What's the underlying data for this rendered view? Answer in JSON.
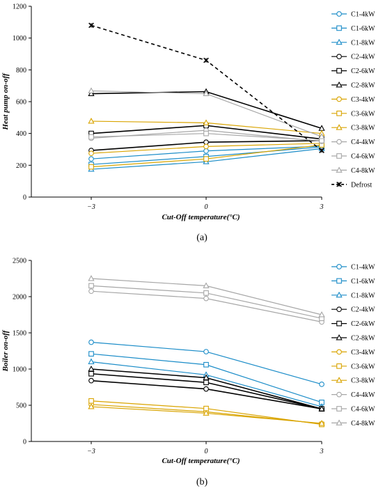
{
  "series_colors": {
    "C1": "#1a8cc8",
    "C2": "#000000",
    "C3": "#d9a400",
    "C4": "#a6a6a6",
    "Defrost": "#000000"
  },
  "chart_data": [
    {
      "id": "a",
      "type": "line",
      "panel_label": "(a)",
      "xlabel": "Cut-Off temperature(°C)",
      "ylabel": "Heat pump on-off",
      "x": [
        -3,
        0,
        3
      ],
      "x_tick_labels": [
        "−3",
        "0",
        "3"
      ],
      "ylim": [
        0,
        1200
      ],
      "y_ticks": [
        0,
        200,
        400,
        600,
        800,
        1000,
        1200
      ],
      "grid": false,
      "legend_position": "right",
      "series": [
        {
          "name": "C1-4kW",
          "group": "C1",
          "marker": "circle",
          "values": [
            240,
            290,
            320
          ]
        },
        {
          "name": "C1-6kW",
          "group": "C1",
          "marker": "square",
          "values": [
            205,
            255,
            315
          ]
        },
        {
          "name": "C1-8kW",
          "group": "C1",
          "marker": "triangle",
          "values": [
            175,
            222,
            305
          ]
        },
        {
          "name": "C2-4kW",
          "group": "C2",
          "marker": "circle",
          "values": [
            293,
            345,
            355
          ]
        },
        {
          "name": "C2-6kW",
          "group": "C2",
          "marker": "square",
          "values": [
            400,
            450,
            365
          ]
        },
        {
          "name": "C2-8kW",
          "group": "C2",
          "marker": "triangle",
          "values": [
            650,
            663,
            432
          ]
        },
        {
          "name": "C3-4kW",
          "group": "C3",
          "marker": "circle",
          "values": [
            275,
            318,
            338
          ]
        },
        {
          "name": "C3-6kW",
          "group": "C3",
          "marker": "square",
          "values": [
            190,
            240,
            328
          ]
        },
        {
          "name": "C3-8kW",
          "group": "C3",
          "marker": "triangle",
          "values": [
            477,
            467,
            400
          ]
        },
        {
          "name": "C4-4kW",
          "group": "C4",
          "marker": "circle",
          "values": [
            370,
            420,
            350
          ]
        },
        {
          "name": "C4-6kW",
          "group": "C4",
          "marker": "square",
          "values": [
            378,
            400,
            355
          ]
        },
        {
          "name": "C4-8kW",
          "group": "C4",
          "marker": "triangle",
          "values": [
            668,
            650,
            380
          ]
        },
        {
          "name": "Defrost",
          "group": "Defrost",
          "marker": "x",
          "dashed": true,
          "values": [
            1080,
            860,
            293
          ]
        }
      ]
    },
    {
      "id": "b",
      "type": "line",
      "panel_label": "(b)",
      "xlabel": "Cut-Off temperature(°C)",
      "ylabel": "Boiler on-off",
      "x": [
        -3,
        0,
        3
      ],
      "x_tick_labels": [
        "−3",
        "0",
        "3"
      ],
      "ylim": [
        0,
        2500
      ],
      "y_ticks": [
        0,
        500,
        1000,
        1500,
        2000,
        2500
      ],
      "grid": false,
      "legend_position": "right",
      "series": [
        {
          "name": "C1-4kW",
          "group": "C1",
          "marker": "circle",
          "values": [
            1370,
            1240,
            790
          ]
        },
        {
          "name": "C1-6kW",
          "group": "C1",
          "marker": "square",
          "values": [
            1210,
            1060,
            540
          ]
        },
        {
          "name": "C1-8kW",
          "group": "C1",
          "marker": "triangle",
          "values": [
            1100,
            920,
            480
          ]
        },
        {
          "name": "C2-4kW",
          "group": "C2",
          "marker": "circle",
          "values": [
            840,
            725,
            450
          ]
        },
        {
          "name": "C2-6kW",
          "group": "C2",
          "marker": "square",
          "values": [
            935,
            815,
            450
          ]
        },
        {
          "name": "C2-8kW",
          "group": "C2",
          "marker": "triangle",
          "values": [
            1000,
            880,
            450
          ]
        },
        {
          "name": "C3-4kW",
          "group": "C3",
          "marker": "circle",
          "values": [
            510,
            410,
            245
          ]
        },
        {
          "name": "C3-6kW",
          "group": "C3",
          "marker": "square",
          "values": [
            560,
            455,
            235
          ]
        },
        {
          "name": "C3-8kW",
          "group": "C3",
          "marker": "triangle",
          "values": [
            480,
            390,
            250
          ]
        },
        {
          "name": "C4-4kW",
          "group": "C4",
          "marker": "circle",
          "values": [
            2075,
            1975,
            1650
          ]
        },
        {
          "name": "C4-6kW",
          "group": "C4",
          "marker": "square",
          "values": [
            2150,
            2050,
            1700
          ]
        },
        {
          "name": "C4-8kW",
          "group": "C4",
          "marker": "triangle",
          "values": [
            2250,
            2150,
            1750
          ]
        }
      ]
    }
  ]
}
